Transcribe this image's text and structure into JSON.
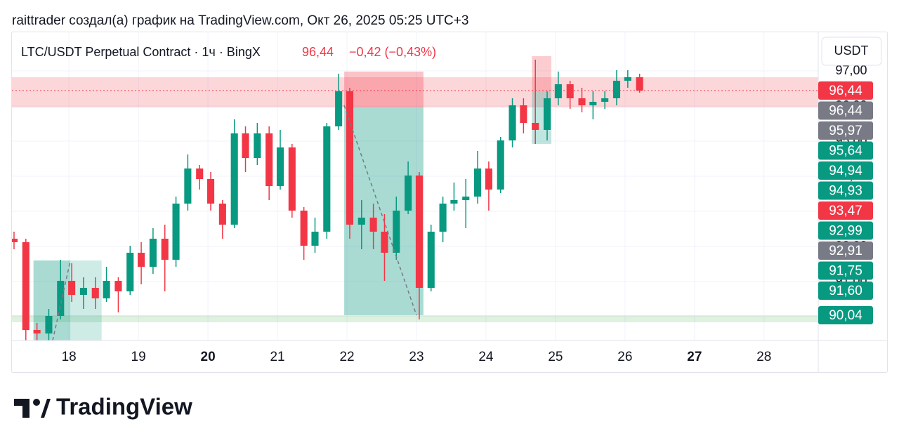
{
  "header": {
    "caption": "raittrader создал(а) график на TradingView.com, Окт 26, 2025 05:25 UTC+3",
    "symbol": "LTC/USDT Perpetual Contract · 1ч · BingX",
    "price": "96,44",
    "change": "−0,42 (−0,43%)",
    "currency": "USDT"
  },
  "footer": {
    "brand": "TradingView"
  },
  "chart_data": {
    "type": "candlestick",
    "up_color": "#089981",
    "down_color": "#f23645",
    "x": [
      17.21,
      17.38,
      17.54,
      17.71,
      17.88,
      18.04,
      18.21,
      18.38,
      18.54,
      18.71,
      18.88,
      19.04,
      19.21,
      19.38,
      19.54,
      19.71,
      19.88,
      20.04,
      20.21,
      20.38,
      20.54,
      20.71,
      20.88,
      21.04,
      21.21,
      21.38,
      21.54,
      21.71,
      21.88,
      22.04,
      22.21,
      22.38,
      22.54,
      22.71,
      22.88,
      23.04,
      23.21,
      23.38,
      23.54,
      23.71,
      23.88,
      24.04,
      24.21,
      24.38,
      24.54,
      24.71,
      24.88,
      25.04,
      25.21,
      25.38,
      25.54,
      25.71,
      25.88,
      26.04,
      26.21
    ],
    "open": [
      92.22,
      92.12,
      89.62,
      89.52,
      90.02,
      91.02,
      90.62,
      90.82,
      90.52,
      91.02,
      90.72,
      91.82,
      91.42,
      92.22,
      91.62,
      93.22,
      94.22,
      93.92,
      93.22,
      92.62,
      95.22,
      94.52,
      95.22,
      93.72,
      94.82,
      93.02,
      92.02,
      92.42,
      95.42,
      96.42,
      92.62,
      92.82,
      92.42,
      91.82,
      93.02,
      94.02,
      90.82,
      92.42,
      93.22,
      93.32,
      93.42,
      94.22,
      93.62,
      95.02,
      96.02,
      95.52,
      95.32,
      96.22,
      96.62,
      96.22,
      96.02,
      96.12,
      96.22,
      96.72,
      96.82
    ],
    "high": [
      92.42,
      92.22,
      89.82,
      90.22,
      91.62,
      91.52,
      91.12,
      91.12,
      91.42,
      91.12,
      92.02,
      92.12,
      92.52,
      92.62,
      93.42,
      94.62,
      94.32,
      94.12,
      93.32,
      95.62,
      95.42,
      95.52,
      95.42,
      95.32,
      94.92,
      93.12,
      92.82,
      95.52,
      96.92,
      96.52,
      93.32,
      93.22,
      92.92,
      93.42,
      94.42,
      94.12,
      92.62,
      93.42,
      93.82,
      93.92,
      94.72,
      94.42,
      95.12,
      96.22,
      96.22,
      97.32,
      96.42,
      96.98,
      96.72,
      96.52,
      96.42,
      96.42,
      97.02,
      97.02,
      96.92
    ],
    "low": [
      91.92,
      89.32,
      89.32,
      89.32,
      89.92,
      90.42,
      90.22,
      90.22,
      90.42,
      90.12,
      90.62,
      90.92,
      91.22,
      90.72,
      91.42,
      93.02,
      93.62,
      93.02,
      92.22,
      92.52,
      94.12,
      94.32,
      93.32,
      93.62,
      92.82,
      91.62,
      91.82,
      92.22,
      95.32,
      92.22,
      91.92,
      91.92,
      91.02,
      91.62,
      92.92,
      89.92,
      90.72,
      92.12,
      93.02,
      92.52,
      93.22,
      93.02,
      93.52,
      94.82,
      95.22,
      94.92,
      95.02,
      96.02,
      95.92,
      95.82,
      95.62,
      95.92,
      96.02,
      96.52,
      96.38
    ],
    "close": [
      92.12,
      89.62,
      89.52,
      90.02,
      91.02,
      90.62,
      90.82,
      90.52,
      91.02,
      90.72,
      91.82,
      91.42,
      92.22,
      91.62,
      93.22,
      94.22,
      93.92,
      93.22,
      92.62,
      95.22,
      94.52,
      95.22,
      93.72,
      94.82,
      93.02,
      92.02,
      92.42,
      95.42,
      96.42,
      92.62,
      92.82,
      92.42,
      91.82,
      93.02,
      94.02,
      90.82,
      92.42,
      93.22,
      93.32,
      93.42,
      94.22,
      93.62,
      95.02,
      96.02,
      95.52,
      95.32,
      96.22,
      96.62,
      96.22,
      96.02,
      96.12,
      96.22,
      96.72,
      96.82,
      96.44
    ],
    "xlim": [
      17.18,
      28.78
    ],
    "xticks": [
      18,
      19,
      20,
      21,
      22,
      23,
      24,
      25,
      26,
      27,
      28
    ],
    "bold_xticks": [
      20,
      27
    ],
    "ylim": [
      89.32,
      98.12
    ],
    "yticks": [
      {
        "value": 90,
        "label": "90,00"
      },
      {
        "value": 91,
        "label": "91,00"
      },
      {
        "value": 92,
        "label": "92,00"
      },
      {
        "value": 93,
        "label": "93,00"
      },
      {
        "value": 94,
        "label": "94,00"
      },
      {
        "value": 95,
        "label": "95,00"
      },
      {
        "value": 96,
        "label": "96,00"
      },
      {
        "value": 97,
        "label": "97,00"
      }
    ],
    "grid": true,
    "price_line": {
      "value": 96.44,
      "color": "#f23645"
    },
    "zones": [
      {
        "x": [
          17.18,
          28.78
        ],
        "y": [
          95.96,
          96.82
        ],
        "color": "rgba(242,54,69,0.2)"
      },
      {
        "x": [
          17.18,
          28.78
        ],
        "y": [
          89.84,
          90.04
        ],
        "color": "rgba(76,175,80,0.18)"
      },
      {
        "x": [
          21.96,
          23.1
        ],
        "y": [
          95.97,
          96.98
        ],
        "color": "rgba(242,54,69,0.3)"
      },
      {
        "x": [
          21.96,
          23.1
        ],
        "y": [
          90.04,
          95.97
        ],
        "color": "rgba(8,153,129,0.35)"
      },
      {
        "x": [
          17.49,
          18.02
        ],
        "y": [
          89.32,
          91.6
        ],
        "color": "rgba(8,153,129,0.35)"
      },
      {
        "x": [
          18.02,
          18.47
        ],
        "y": [
          89.32,
          91.6
        ],
        "color": "rgba(8,153,129,0.2)"
      },
      {
        "x": [
          24.66,
          24.94
        ],
        "y": [
          96.42,
          97.42
        ],
        "color": "rgba(242,54,69,0.25)"
      },
      {
        "x": [
          24.66,
          24.94
        ],
        "y": [
          94.92,
          96.42
        ],
        "color": "rgba(8,153,129,0.25)"
      }
    ],
    "price_labels": [
      {
        "value": 96.44,
        "label": "96,44",
        "color": "#f23645"
      },
      {
        "value": 96.44,
        "label": "96,44",
        "color": "#787b86"
      },
      {
        "value": 95.97,
        "label": "95,97",
        "color": "#787b86"
      },
      {
        "value": 95.64,
        "label": "95,64",
        "color": "#089981"
      },
      {
        "value": 94.94,
        "label": "94,94",
        "color": "#089981"
      },
      {
        "value": 94.93,
        "label": "94,93",
        "color": "#089981"
      },
      {
        "value": 93.47,
        "label": "93,47",
        "color": "#f23645"
      },
      {
        "value": 92.99,
        "label": "92,99",
        "color": "#089981"
      },
      {
        "value": 92.91,
        "label": "92,91",
        "color": "#787b86"
      },
      {
        "value": 91.75,
        "label": "91,75",
        "color": "#089981"
      },
      {
        "value": 91.6,
        "label": "91,60",
        "color": "#089981"
      },
      {
        "value": 90.04,
        "label": "90,04",
        "color": "#089981"
      }
    ]
  }
}
